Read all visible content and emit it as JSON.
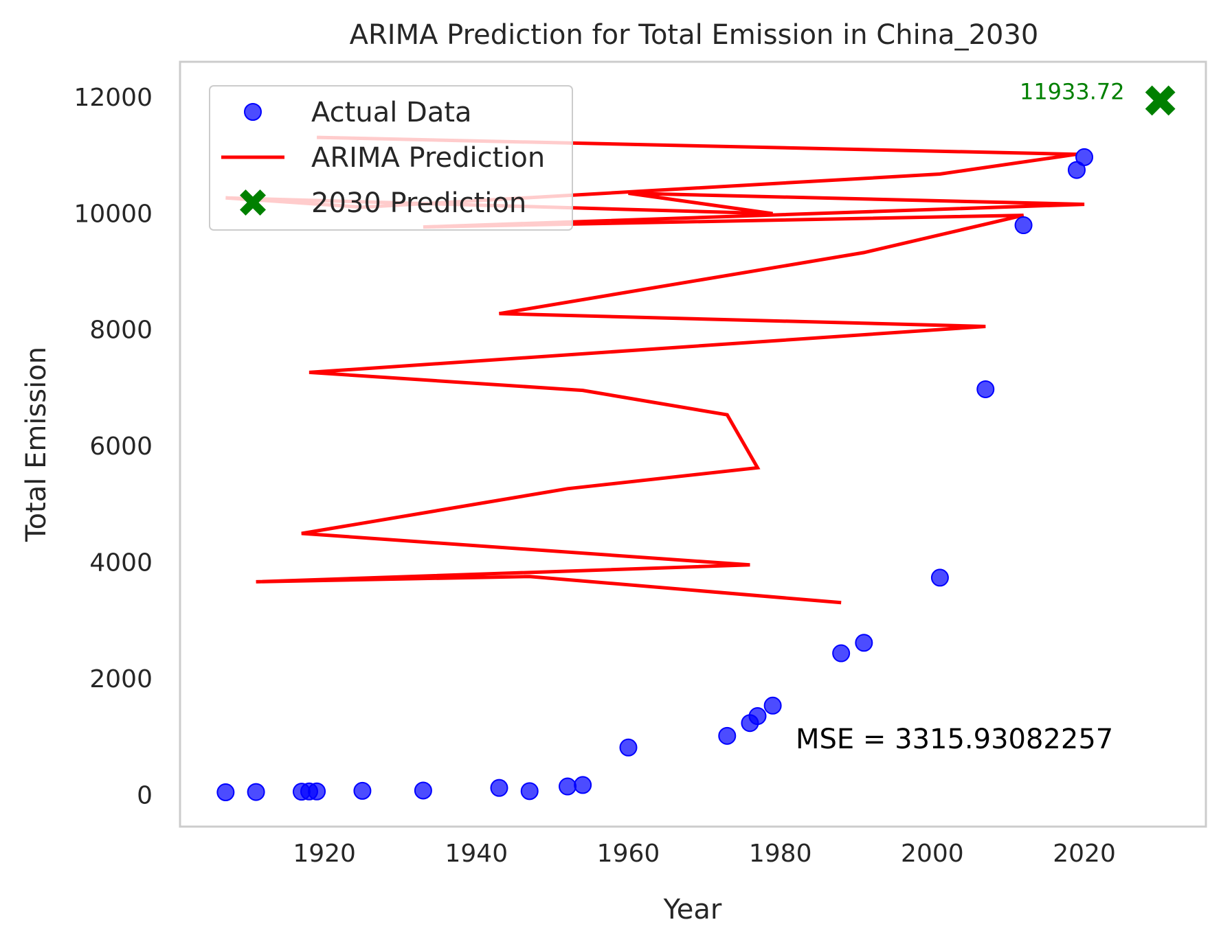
{
  "chart_data": {
    "type": "line",
    "title": "ARIMA Prediction for Total Emission in China_2030",
    "xlabel": "Year",
    "ylabel": "Total Emission",
    "xlim": [
      1901,
      2036
    ],
    "ylim": [
      -550,
      12600
    ],
    "x_ticks": [
      1920,
      1940,
      1960,
      1980,
      2000,
      2020
    ],
    "y_ticks": [
      0,
      2000,
      4000,
      6000,
      8000,
      10000,
      12000
    ],
    "grid": false,
    "legend_position": "top-left",
    "series": [
      {
        "name": "Actual Data",
        "kind": "scatter",
        "color": "#0000ff",
        "points": [
          [
            1907,
            40
          ],
          [
            1911,
            45
          ],
          [
            1917,
            50
          ],
          [
            1918,
            55
          ],
          [
            1919,
            55
          ],
          [
            1925,
            65
          ],
          [
            1933,
            70
          ],
          [
            1943,
            115
          ],
          [
            1947,
            60
          ],
          [
            1952,
            140
          ],
          [
            1954,
            165
          ],
          [
            1960,
            810
          ],
          [
            1973,
            1010
          ],
          [
            1976,
            1230
          ],
          [
            1977,
            1350
          ],
          [
            1979,
            1530
          ],
          [
            1988,
            2430
          ],
          [
            1991,
            2610
          ],
          [
            2001,
            3730
          ],
          [
            2007,
            6970
          ],
          [
            2012,
            9790
          ],
          [
            2019,
            10740
          ],
          [
            2020,
            10960
          ]
        ]
      },
      {
        "name": "ARIMA Prediction",
        "kind": "line",
        "color": "#ff0000",
        "points": [
          [
            1988,
            3300
          ],
          [
            1947,
            3750
          ],
          [
            1911,
            3660
          ],
          [
            1976,
            3950
          ],
          [
            1917,
            4490
          ],
          [
            1952,
            5260
          ],
          [
            1977,
            5620
          ],
          [
            1973,
            6530
          ],
          [
            1954,
            6950
          ],
          [
            1918,
            7260
          ],
          [
            2007,
            8050
          ],
          [
            1943,
            8270
          ],
          [
            1991,
            9320
          ],
          [
            2012,
            9960
          ],
          [
            1933,
            9760
          ],
          [
            2020,
            10150
          ],
          [
            1960,
            10340
          ],
          [
            1979,
            9990
          ],
          [
            1907,
            10260
          ],
          [
            1925,
            10100
          ],
          [
            2001,
            10670
          ],
          [
            2019,
            11010
          ],
          [
            1919,
            11300
          ]
        ]
      },
      {
        "name": "2030 Prediction",
        "kind": "marker",
        "color": "#008000",
        "points": [
          [
            2030,
            11933.72
          ]
        ]
      }
    ],
    "annotations": [
      {
        "text": "11933.72",
        "x": 2030,
        "y": 11933.72,
        "color": "#008000"
      },
      {
        "text": "MSE = 3315.93082257",
        "color": "#000000"
      }
    ]
  }
}
